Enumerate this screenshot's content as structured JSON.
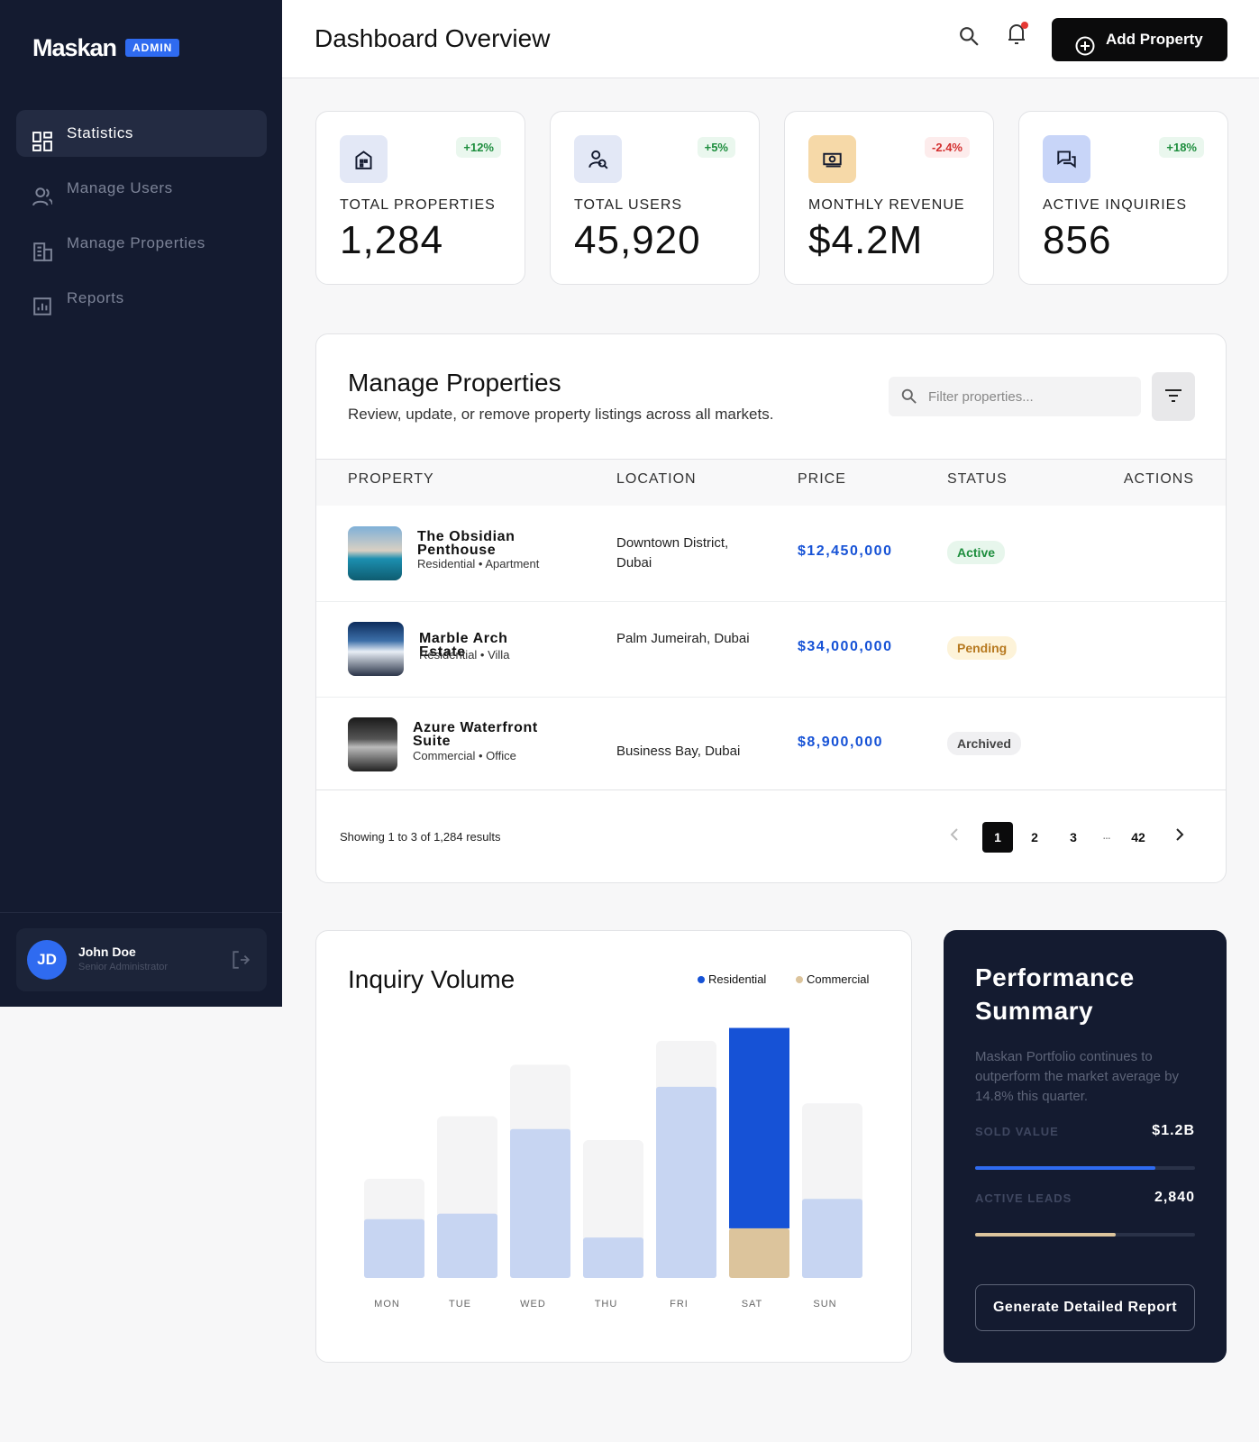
{
  "sidebar": {
    "brand": "Maskan",
    "badge": "ADMIN",
    "nav": [
      "Statistics",
      "Manage Users",
      "Manage Properties",
      "Reports"
    ],
    "user": {
      "initials": "JD",
      "name": "John Doe",
      "role": "Senior Administrator"
    }
  },
  "header": {
    "title": "Dashboard Overview",
    "button": "Add Property"
  },
  "stats": [
    {
      "label": "TOTAL PROPERTIES",
      "value": "1,284",
      "change": "+12%"
    },
    {
      "label": "TOTAL USERS",
      "value": "45,920",
      "change": "+5%"
    },
    {
      "label": "MONTHLY REVENUE",
      "value": "$4.2M",
      "change": "-2.4%"
    },
    {
      "label": "ACTIVE INQUIRIES",
      "value": "856",
      "change": "+18%"
    }
  ],
  "properties": {
    "title": "Manage Properties",
    "subtitle": "Review, update, or remove property listings across all markets.",
    "search_placeholder": "Filter properties...",
    "columns": [
      "PROPERTY",
      "LOCATION",
      "PRICE",
      "STATUS",
      "ACTIONS"
    ],
    "rows": [
      {
        "name": "The Obsidian Penthouse",
        "type": "Residential • Apartment",
        "location": "Downtown District, Dubai",
        "price": "$12,450,000",
        "status": "Active"
      },
      {
        "name": "Marble Arch Estate",
        "type": "Residential • Villa",
        "location": "Palm Jumeirah, Dubai",
        "price": "$34,000,000",
        "status": "Pending"
      },
      {
        "name": "Azure Waterfront Suite",
        "type": "Commercial • Office",
        "location": "Business Bay, Dubai",
        "price": "$8,900,000",
        "status": "Archived"
      }
    ],
    "footer": "Showing 1 to 3 of 1,284 results",
    "pages": [
      "1",
      "2",
      "3",
      "...",
      "42"
    ]
  },
  "inquiry": {
    "title": "Inquiry Volume",
    "categories": [
      "MON",
      "TUE",
      "WED",
      "THU",
      "FRI",
      "SAT",
      "SUN"
    ],
    "highlight": "SAT",
    "series": [
      {
        "name": "Residential",
        "color": "#1652d6",
        "values": [
          64,
          70,
          162,
          44,
          208,
          218,
          86
        ]
      },
      {
        "name": "Commercial",
        "color": "#dcc49c",
        "values": [
          null,
          null,
          null,
          null,
          null,
          54,
          null
        ]
      }
    ],
    "track_values": [
      108,
      176,
      232,
      150,
      258,
      272,
      190
    ]
  },
  "performance": {
    "title": "Performance Summary",
    "text": "Maskan Portfolio continues to outperform the market average by 14.8% this quarter.",
    "metrics": [
      {
        "label": "SOLD VALUE",
        "value": "$1.2B",
        "progress": 82
      },
      {
        "label": "ACTIVE LEADS",
        "value": "2,840",
        "progress": 64
      }
    ],
    "button": "Generate Detailed Report"
  }
}
